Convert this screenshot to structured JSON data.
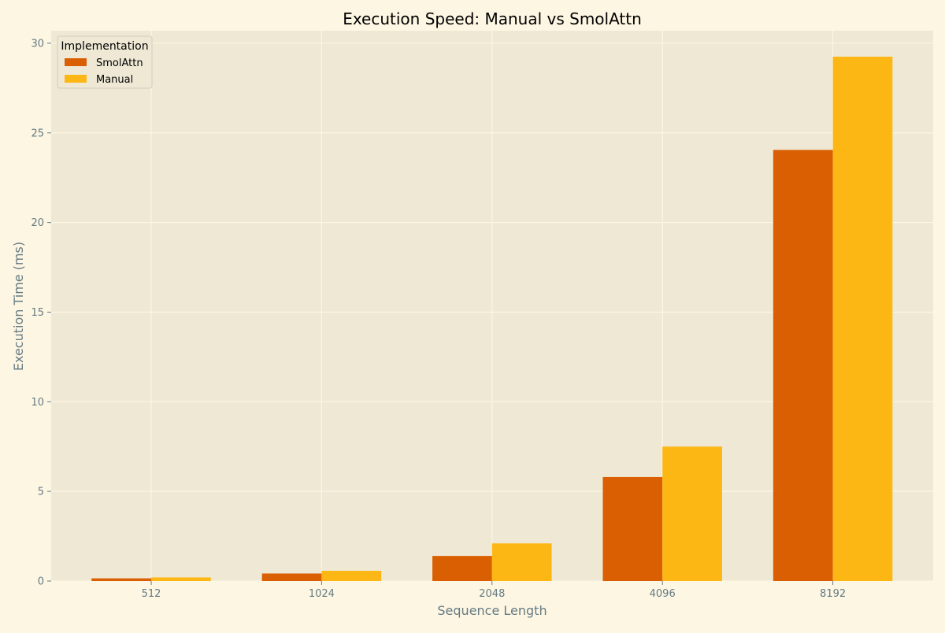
{
  "chart_data": {
    "type": "bar",
    "title": "Execution Speed: Manual vs SmolAttn",
    "xlabel": "Sequence Length",
    "ylabel": "Execution Time (ms)",
    "categories": [
      "512",
      "1024",
      "2048",
      "4096",
      "8192"
    ],
    "series": [
      {
        "name": "SmolAttn",
        "color": "#d95f02",
        "values": [
          0.15,
          0.42,
          1.4,
          5.8,
          24.05
        ]
      },
      {
        "name": "Manual",
        "color": "#fdb714",
        "values": [
          0.2,
          0.57,
          2.1,
          7.5,
          29.25
        ]
      }
    ],
    "ylim": [
      0,
      30.7
    ],
    "yticks": [
      0,
      5,
      10,
      15,
      20,
      25,
      30
    ],
    "grid": true,
    "legend": {
      "title": "Implementation",
      "position": "top-left"
    }
  },
  "colors": {
    "page_background": "#fdf6e3",
    "plot_background": "#eee8d5",
    "grid": "#fdf6e3",
    "text": "#657b83"
  }
}
